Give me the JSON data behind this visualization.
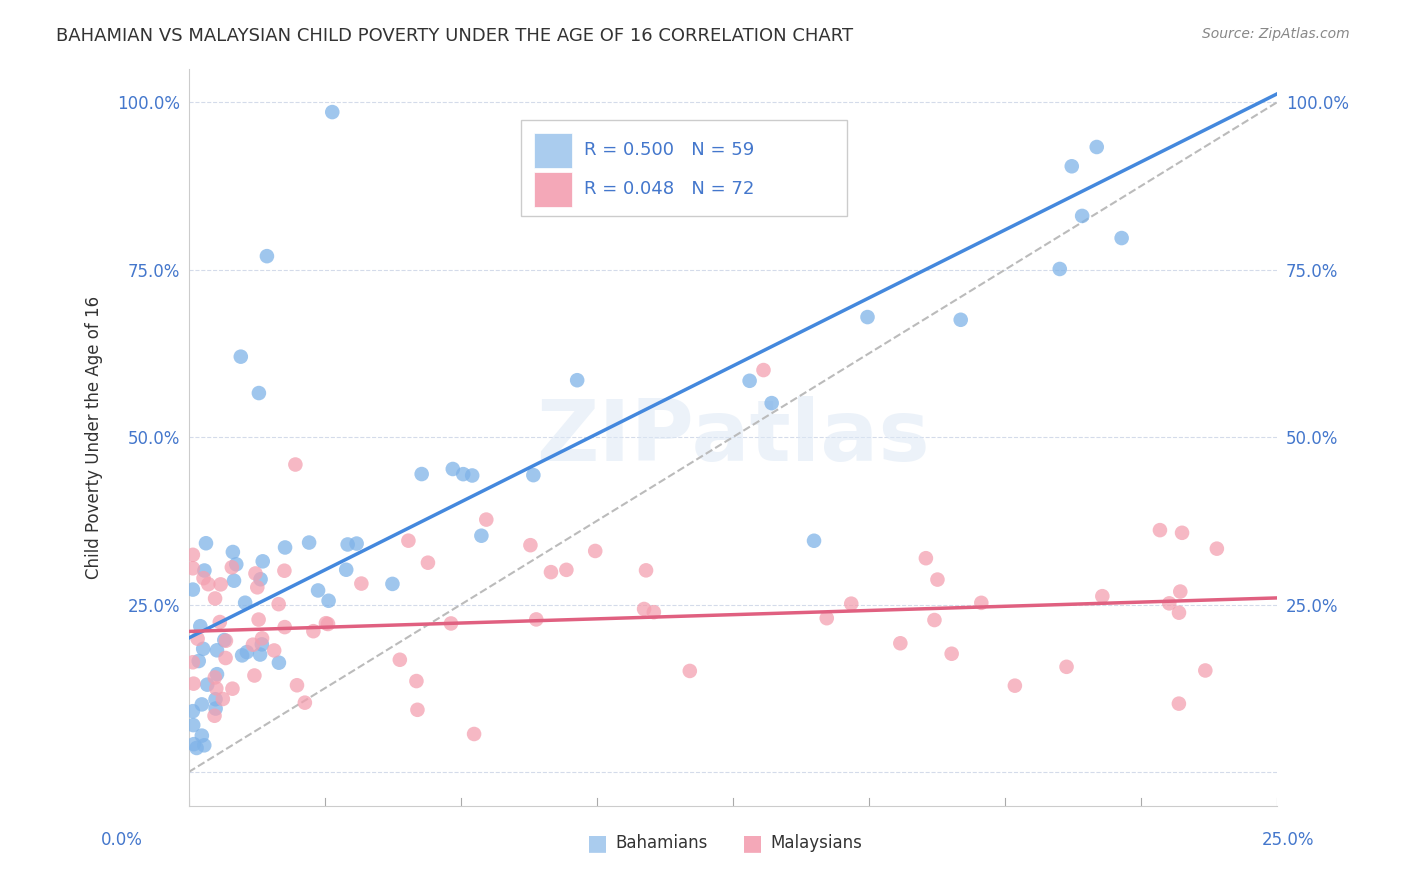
{
  "title": "BAHAMIAN VS MALAYSIAN CHILD POVERTY UNDER THE AGE OF 16 CORRELATION CHART",
  "source": "Source: ZipAtlas.com",
  "ylabel": "Child Poverty Under the Age of 16",
  "xlim": [
    0,
    0.25
  ],
  "ylim": [
    -0.05,
    1.05
  ],
  "yticks": [
    0.0,
    0.25,
    0.5,
    0.75,
    1.0
  ],
  "ytick_labels": [
    "",
    "25.0%",
    "50.0%",
    "75.0%",
    "100.0%"
  ],
  "bg_color": "#ffffff",
  "grid_color": "#d0d8e8",
  "bahamian_color": "#7fb3e8",
  "malaysian_color": "#f4a0b0",
  "reg_blue": "#4488dd",
  "reg_pink": "#e06080",
  "ref_line_color": "#bbbbbb",
  "watermark": "ZIPatlas",
  "legend_R_blue": "R = 0.500",
  "legend_N_blue": "N = 59",
  "legend_R_pink": "R = 0.048",
  "legend_N_pink": "N = 72"
}
